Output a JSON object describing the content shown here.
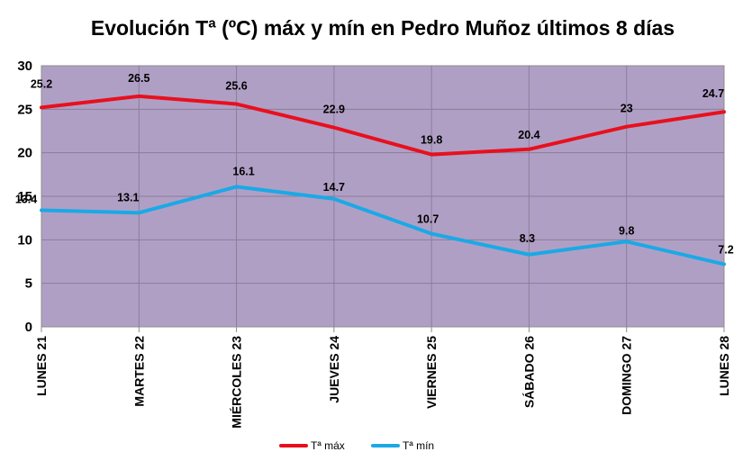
{
  "chart_data": {
    "type": "line",
    "title": "Evolución Tª (ºC) máx y mín en Pedro Muñoz últimos 8 días",
    "xlabel": "",
    "ylabel": "",
    "categories": [
      "LUNES 21",
      "MARTES 22",
      "MIÉRCOLES 23",
      "JUEVES 24",
      "VIERNES 25",
      "SÁBADO 26",
      "DOMINGO 27",
      "LUNES 28"
    ],
    "ylim": [
      0,
      30
    ],
    "yticks": [
      0,
      5,
      10,
      15,
      20,
      25,
      30
    ],
    "grid": true,
    "legend_position": "bottom",
    "plot_background": "#b09fc5",
    "series": [
      {
        "name": "Tª máx",
        "color": "#e8101e",
        "values": [
          25.2,
          26.5,
          25.6,
          22.9,
          19.8,
          20.4,
          23,
          24.7
        ],
        "labels": [
          "25.2",
          "26.5",
          "25.6",
          "22.9",
          "19.8",
          "20.4",
          "23",
          "24.7"
        ]
      },
      {
        "name": "Tª mín",
        "color": "#1aa9e6",
        "values": [
          13.4,
          13.1,
          16.1,
          14.7,
          10.7,
          8.3,
          9.8,
          7.2
        ],
        "labels": [
          "13.4",
          "13.1",
          "16.1",
          "14.7",
          "10.7",
          "8.3",
          "9.8",
          "7.2"
        ]
      }
    ]
  }
}
